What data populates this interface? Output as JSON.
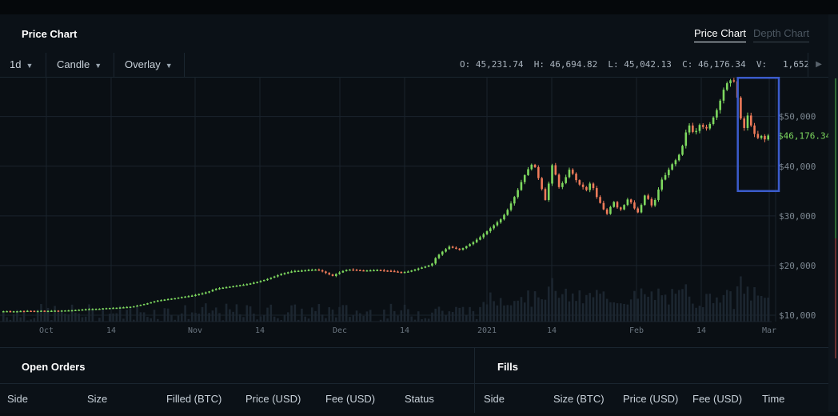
{
  "panel": {
    "title": "Price Chart"
  },
  "tabs": [
    {
      "label": "Price Chart",
      "active": true
    },
    {
      "label": "Depth Chart",
      "active": false
    }
  ],
  "toolbar": {
    "interval": "1d",
    "chart_type": "Candle",
    "overlay": "Overlay",
    "ohlcv": "O: 45,231.74  H: 46,694.82  L: 45,042.13  C: 46,176.34  V:   1,652"
  },
  "colors": {
    "up": "#7ed95f",
    "down": "#f07b5a",
    "current_price": "#7ed95f",
    "highlight_box": "#3b5ccc",
    "background": "#0a0f14"
  },
  "chart_data": {
    "type": "candlestick",
    "x_ticks": [
      "Oct",
      "14",
      "Nov",
      "14",
      "Dec",
      "14",
      "2021",
      "14",
      "Feb",
      "14",
      "Mar"
    ],
    "y_ticks": [
      "$10,000",
      "$20,000",
      "$30,000",
      "$40,000",
      "$50,000"
    ],
    "ylim": [
      10000,
      58000
    ],
    "current_price_label": "$46,176.34",
    "current_price": 46176.34,
    "grid": true,
    "highlighted_region": "last ~8 days (price drop from ~57,000)",
    "close": [
      10800,
      10820,
      10740,
      10790,
      10800,
      10850,
      10830,
      10880,
      10870,
      10820,
      10850,
      10900,
      10860,
      10870,
      10890,
      10920,
      10910,
      10940,
      10960,
      10980,
      11000,
      11050,
      11100,
      11150,
      11200,
      11250,
      11260,
      11280,
      11300,
      11380,
      11420,
      11450,
      11480,
      11500,
      11550,
      11600,
      11650,
      11700,
      11800,
      11950,
      12100,
      12250,
      12400,
      12600,
      12800,
      12950,
      13050,
      13150,
      13250,
      13350,
      13420,
      13550,
      13650,
      13750,
      13850,
      13950,
      14100,
      14250,
      14400,
      14600,
      14800,
      15100,
      15300,
      15450,
      15550,
      15650,
      15750,
      15850,
      15950,
      16050,
      16150,
      16250,
      16400,
      16550,
      16700,
      16900,
      17100,
      17300,
      17550,
      17800,
      18050,
      18300,
      18500,
      18650,
      18800,
      18900,
      18950,
      19000,
      19050,
      19100,
      19150,
      19200,
      19050,
      18800,
      18500,
      18200,
      17900,
      18300,
      18600,
      18900,
      19100,
      19200,
      19150,
      19100,
      19050,
      19000,
      19020,
      19050,
      19080,
      19100,
      19050,
      19000,
      18950,
      18900,
      18800,
      18700,
      18650,
      18700,
      18800,
      19000,
      19200,
      19400,
      19600,
      19800,
      20000,
      20400,
      21500,
      22200,
      22800,
      23300,
      23800,
      23600,
      23400,
      23200,
      23500,
      23900,
      24300,
      24700,
      25200,
      25700,
      26300,
      26900,
      27500,
      28100,
      28700,
      29300,
      30200,
      31200,
      32500,
      33800,
      35200,
      36800,
      38200,
      39400,
      40300,
      39800,
      37600,
      35400,
      33200,
      36500,
      40200,
      38300,
      35800,
      36600,
      37800,
      39300,
      38500,
      37200,
      36300,
      35800,
      35200,
      36500,
      35600,
      33800,
      32600,
      31300,
      30400,
      31800,
      32800,
      31700,
      31300,
      32200,
      33300,
      32700,
      31500,
      30700,
      32200,
      34100,
      33400,
      32100,
      33200,
      35300,
      37300,
      38200,
      39300,
      40400,
      41200,
      42300,
      44100,
      46800,
      48200,
      46900,
      47100,
      48300,
      47900,
      47600,
      48500,
      49800,
      51300,
      53200,
      55400,
      56700,
      57300,
      57100,
      53800,
      49600,
      47700,
      50200,
      48200,
      46500,
      45700,
      46100,
      45400,
      46176
    ]
  },
  "open_orders": {
    "title": "Open Orders",
    "columns": [
      "Side",
      "Size",
      "Filled (BTC)",
      "Price (USD)",
      "Fee (USD)",
      "Status"
    ]
  },
  "fills": {
    "title": "Fills",
    "columns": [
      "Side",
      "Size (BTC)",
      "Price (USD)",
      "Fee (USD)",
      "Time"
    ]
  }
}
